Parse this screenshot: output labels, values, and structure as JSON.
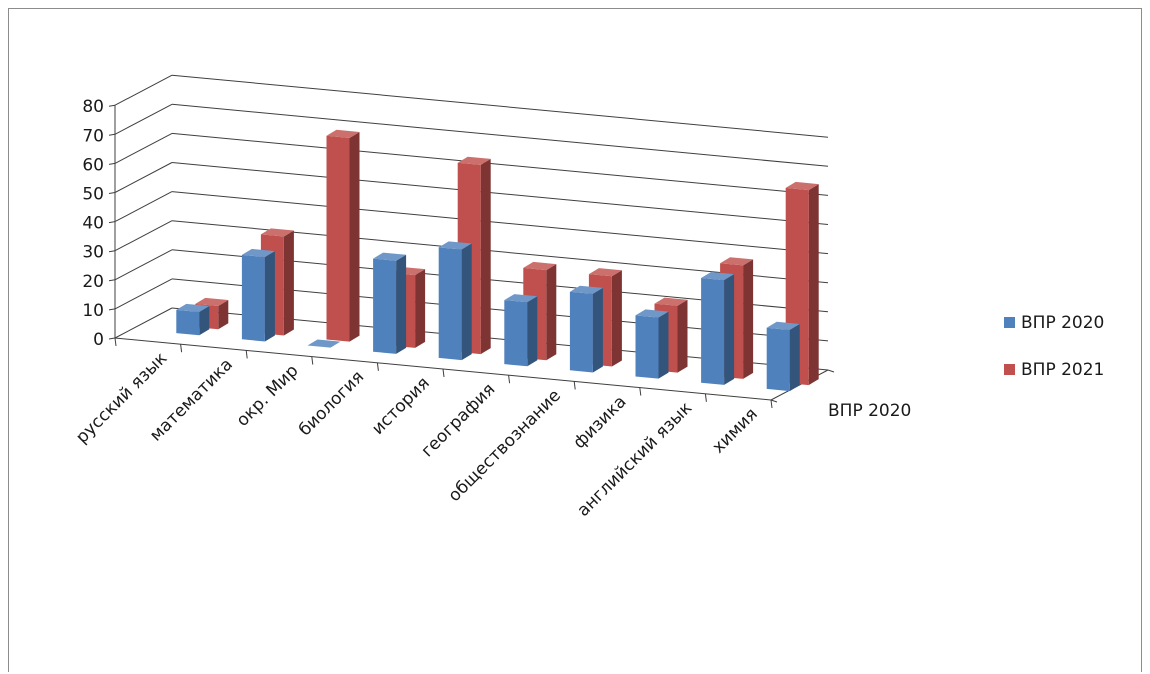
{
  "chart_data": {
    "type": "bar",
    "title": "",
    "xlabel": "",
    "ylabel": "",
    "depth_label": "ВПР 2020",
    "ylim": [
      0,
      80
    ],
    "yticks": [
      0,
      10,
      20,
      30,
      40,
      50,
      60,
      70,
      80
    ],
    "grid": true,
    "legend_position": "right",
    "categories": [
      "русский язык",
      "математика",
      "окр. Мир",
      "биология",
      "история",
      "география",
      "обществознание",
      "физика",
      "английский язык",
      "химия"
    ],
    "series": [
      {
        "name": "ВПР 2020",
        "color": "#4f81bd",
        "values": [
          8,
          29,
          0,
          32,
          38,
          22,
          27,
          21,
          36,
          21
        ]
      },
      {
        "name": "ВПР 2021",
        "color": "#c0504d",
        "values": [
          8,
          34,
          70,
          25,
          65,
          31,
          31,
          23,
          39,
          67
        ]
      }
    ]
  }
}
